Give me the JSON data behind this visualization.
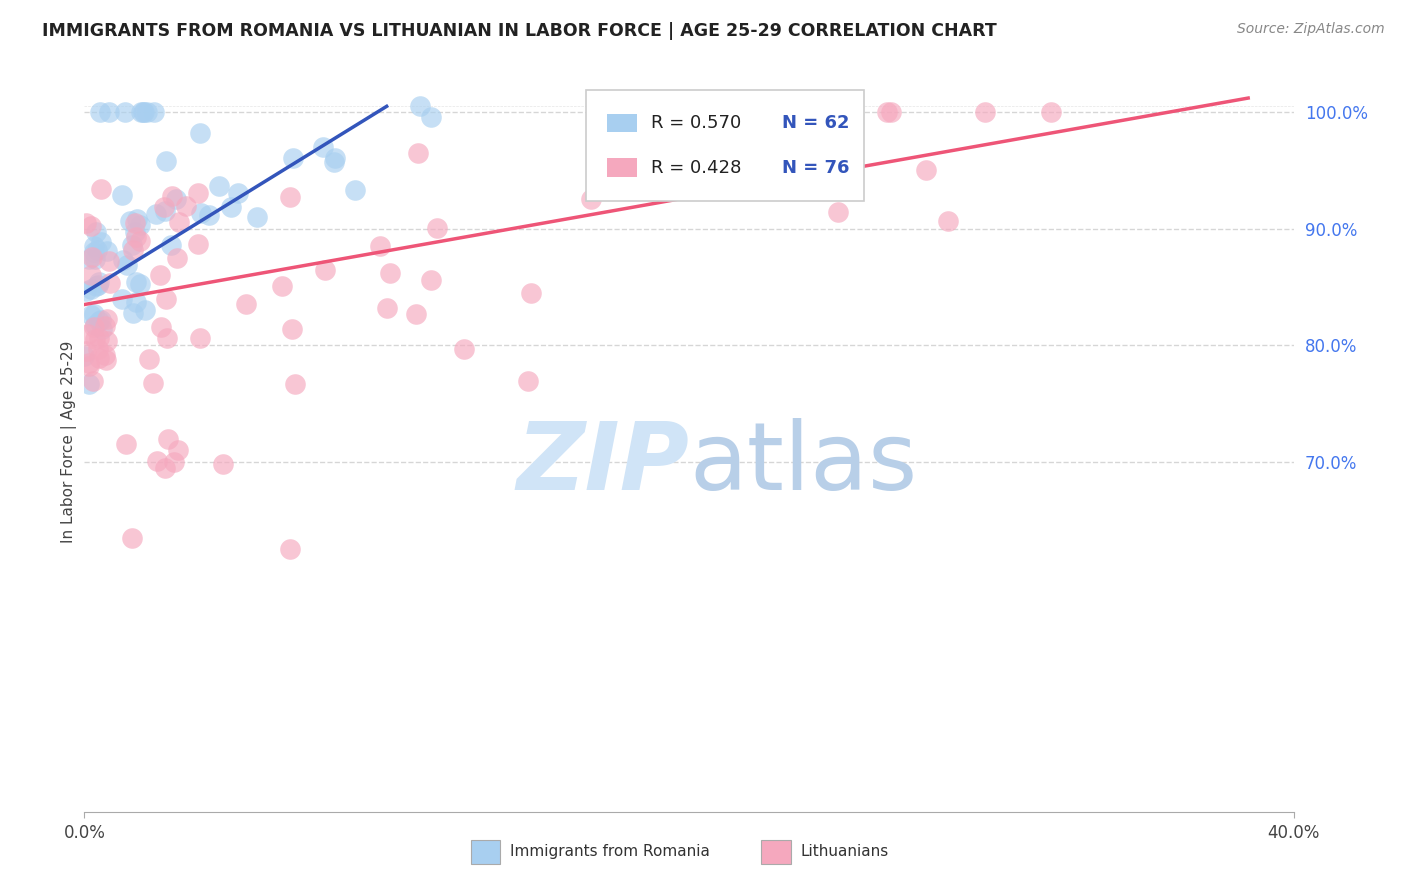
{
  "title": "IMMIGRANTS FROM ROMANIA VS LITHUANIAN IN LABOR FORCE | AGE 25-29 CORRELATION CHART",
  "source": "Source: ZipAtlas.com",
  "ylabel": "In Labor Force | Age 25-29",
  "xlim": [
    0.0,
    0.4
  ],
  "ylim": [
    0.4,
    1.035
  ],
  "xtick_positions": [
    0.0,
    0.4
  ],
  "xtick_labels": [
    "0.0%",
    "40.0%"
  ],
  "yticks": [
    0.7,
    0.8,
    0.9,
    1.0
  ],
  "ytick_labels_right": [
    "70.0%",
    "80.0%",
    "90.0%",
    "100.0%"
  ],
  "color_romania": "#a8cff0",
  "color_lithuania": "#f5a8be",
  "color_romania_line": "#3355bb",
  "color_lithuania_line": "#ee5577",
  "legend_R_romania": "R = 0.570",
  "legend_N_romania": "N = 62",
  "legend_R_lithuania": "R = 0.428",
  "legend_N_lithuania": "N = 76",
  "grid_color": "#cccccc",
  "background_color": "#ffffff",
  "title_color": "#222222",
  "axis_label_color": "#444444",
  "tick_label_color_right": "#4477ee",
  "tick_label_color_bottom": "#444444",
  "watermark_color": "#d0e4f7"
}
